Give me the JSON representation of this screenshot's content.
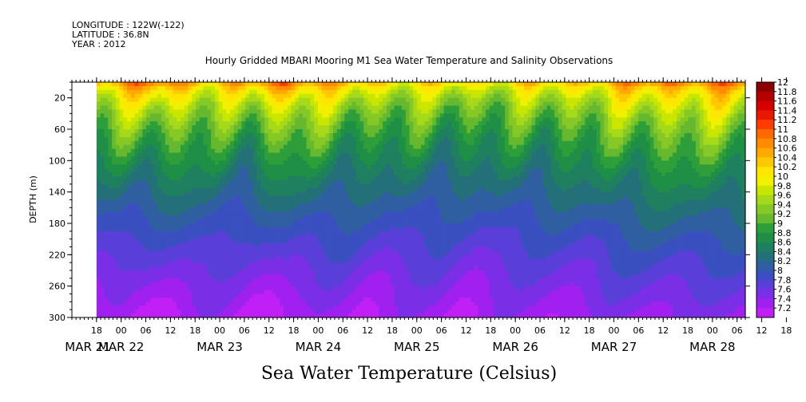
{
  "header": {
    "longitude": "LONGITUDE : 122W(-122)",
    "latitude": "LATITUDE : 36.8N",
    "year": "YEAR : 2012"
  },
  "chart_data": {
    "type": "heatmap",
    "title": "Hourly Gridded MBARI Mooring M1 Sea Water Temperature and Salinity Observations",
    "xlabel": "",
    "ylabel": "DEPTH (m)",
    "bottom_label": "Sea Water Temperature (Celsius)",
    "ylim": [
      300,
      0
    ],
    "y_ticks": [
      "20",
      "60",
      "100",
      "140",
      "180",
      "220",
      "260",
      "300"
    ],
    "x_hour_ticks": [
      "18",
      "00",
      "06",
      "12",
      "18",
      "00",
      "06",
      "12",
      "18",
      "00",
      "06",
      "12",
      "18",
      "00",
      "06",
      "12",
      "18",
      "00",
      "06",
      "12",
      "18",
      "00",
      "06",
      "12",
      "18",
      "00",
      "06",
      "12",
      "18",
      "00",
      "06",
      "12"
    ],
    "x_day_labels": [
      "MAR 21",
      "MAR 22",
      "MAR 23",
      "MAR 24",
      "MAR 25",
      "MAR 26",
      "MAR 27",
      "MAR 28"
    ],
    "x_range_hours_from_mar21_00": [
      12,
      176
    ],
    "data_start_hours": 18,
    "levels": [
      "12",
      "11.8",
      "11.6",
      "11.4",
      "11.2",
      "11",
      "10.8",
      "10.6",
      "10.4",
      "10.2",
      "10",
      "9.8",
      "9.6",
      "9.4",
      "9.2",
      "9",
      "8.8",
      "8.6",
      "8.4",
      "8.2",
      "8",
      "7.8",
      "7.6",
      "7.4",
      "7.2"
    ],
    "level_colors": [
      "#8b0000",
      "#b30000",
      "#d40000",
      "#e81800",
      "#ff3c00",
      "#ff6a00",
      "#ff8c00",
      "#ffaa00",
      "#ffc800",
      "#ffe600",
      "#f0f000",
      "#c8e600",
      "#a6d91a",
      "#86c926",
      "#66b82e",
      "#2e9e3a",
      "#1f8f46",
      "#1f8060",
      "#247078",
      "#2f5fa0",
      "#3a4fc0",
      "#5a3ed8",
      "#7a2ee6",
      "#a020f0",
      "#c020f5"
    ],
    "surface_profile_c": [
      11.0,
      11.2,
      11.3,
      11.4,
      11.3,
      11.1,
      10.9,
      10.9,
      11.0,
      11.4,
      11.6,
      11.3,
      11.0,
      10.9,
      10.8,
      10.7,
      10.7,
      10.6,
      10.6,
      10.6,
      10.5,
      10.6,
      10.6,
      10.7,
      10.7,
      10.8,
      10.9,
      11.0,
      11.1,
      11.2,
      11.3,
      11.3,
      11.4,
      11.3,
      11.2
    ],
    "bottom_profile_c": [
      7.4,
      7.4,
      7.3,
      7.3,
      7.4,
      7.5,
      7.5,
      7.4,
      7.3,
      7.3,
      7.4,
      7.4,
      7.5,
      7.5,
      7.4,
      7.4,
      7.5,
      7.5,
      7.5,
      7.4,
      7.4,
      7.5,
      7.5,
      7.5,
      7.5,
      7.5,
      7.5,
      7.6,
      7.6,
      7.6,
      7.6,
      7.6,
      7.6,
      7.6,
      7.6
    ]
  }
}
